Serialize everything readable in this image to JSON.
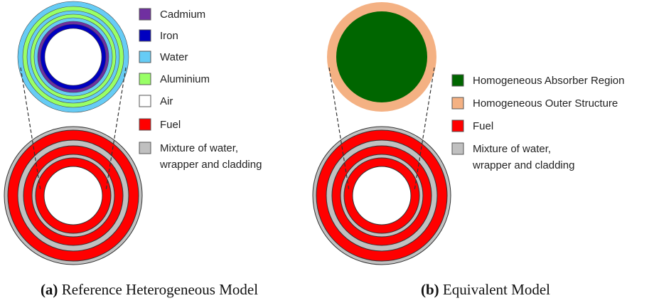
{
  "panels": [
    {
      "caption": {
        "tag": "(a)",
        "text": "Reference Heterogeneous Model"
      },
      "legend": [
        {
          "label": [
            "Cadmium"
          ],
          "color": "#7030a0"
        },
        {
          "label": [
            "Iron"
          ],
          "color": "#0000c0"
        },
        {
          "label": [
            "Water"
          ],
          "color": "#66ccf5"
        },
        {
          "label": [
            "Aluminium"
          ],
          "color": "#99ff66"
        },
        {
          "label": [
            "Air"
          ],
          "color": "#ffffff"
        },
        {
          "label": [
            "Fuel"
          ],
          "color": "#ff0000"
        },
        {
          "label": [
            "Mixture of water,",
            "wrapper and cladding"
          ],
          "color": "#c0c0c0"
        }
      ]
    },
    {
      "caption": {
        "tag": "(b)",
        "text": "Equivalent Model"
      },
      "legend": [
        {
          "label": [
            "Homogeneous Absorber Region"
          ],
          "color": "#006600"
        },
        {
          "label": [
            "Homogeneous Outer Structure"
          ],
          "color": "#f4b183"
        },
        {
          "label": [
            "Fuel"
          ],
          "color": "#ff0000"
        },
        {
          "label": [
            "Mixture of water,",
            "wrapper and cladding"
          ],
          "color": "#c0c0c0"
        }
      ]
    }
  ]
}
